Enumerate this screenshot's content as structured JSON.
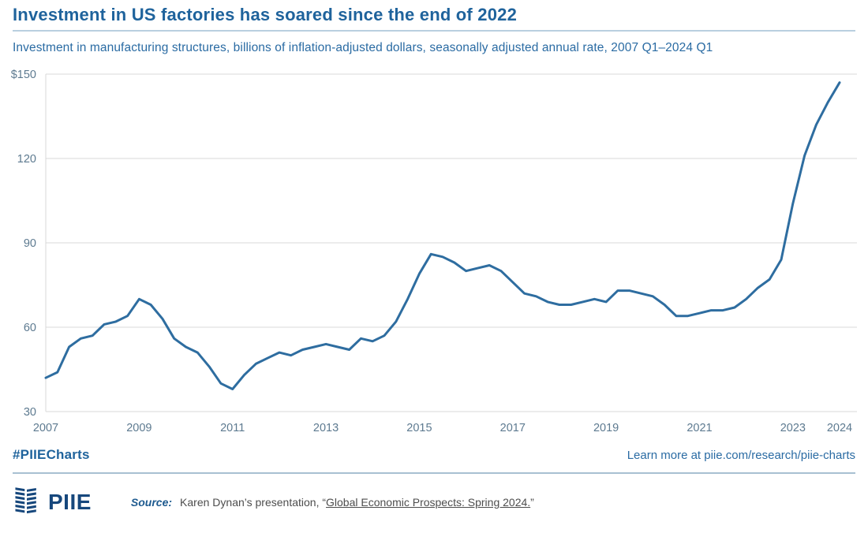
{
  "header": {
    "title": "Investment in US factories has soared since the end of 2022",
    "subtitle": "Investment in manufacturing structures, billions of inflation-adjusted dollars, seasonally adjusted annual rate, 2007 Q1–2024 Q1"
  },
  "chart_data": {
    "type": "line",
    "title": "Investment in US factories has soared since the end of 2022",
    "series_name": "Investment in manufacturing structures (billions of inflation-adjusted dollars, SAAR)",
    "x": [
      2007,
      2007.25,
      2007.5,
      2007.75,
      2008,
      2008.25,
      2008.5,
      2008.75,
      2009,
      2009.25,
      2009.5,
      2009.75,
      2010,
      2010.25,
      2010.5,
      2010.75,
      2011,
      2011.25,
      2011.5,
      2011.75,
      2012,
      2012.25,
      2012.5,
      2012.75,
      2013,
      2013.25,
      2013.5,
      2013.75,
      2014,
      2014.25,
      2014.5,
      2014.75,
      2015,
      2015.25,
      2015.5,
      2015.75,
      2016,
      2016.25,
      2016.5,
      2016.75,
      2017,
      2017.25,
      2017.5,
      2017.75,
      2018,
      2018.25,
      2018.5,
      2018.75,
      2019,
      2019.25,
      2019.5,
      2019.75,
      2020,
      2020.25,
      2020.5,
      2020.75,
      2021,
      2021.25,
      2021.5,
      2021.75,
      2022,
      2022.25,
      2022.5,
      2022.75,
      2023,
      2023.25,
      2023.5,
      2023.75,
      2024
    ],
    "values": [
      42,
      44,
      53,
      56,
      57,
      61,
      62,
      64,
      70,
      68,
      63,
      56,
      53,
      51,
      46,
      40,
      38,
      43,
      47,
      49,
      51,
      50,
      52,
      53,
      54,
      53,
      52,
      56,
      55,
      57,
      62,
      70,
      79,
      86,
      85,
      83,
      80,
      81,
      82,
      80,
      76,
      72,
      71,
      69,
      68,
      68,
      69,
      70,
      69,
      73,
      73,
      72,
      71,
      68,
      64,
      64,
      65,
      66,
      66,
      67,
      70,
      74,
      77,
      84,
      104,
      121,
      132,
      140,
      147
    ],
    "xlim": [
      2007,
      2024
    ],
    "ylim": [
      30,
      150
    ],
    "yticks": [
      30,
      60,
      90,
      120,
      150
    ],
    "ytick_labels": [
      "30",
      "60",
      "90",
      "120",
      "$150"
    ],
    "xticks": [
      2007,
      2009,
      2011,
      2013,
      2015,
      2017,
      2019,
      2021,
      2023,
      2024
    ],
    "grid": "horizontal",
    "legend": "none",
    "line_color": "#2e6da0",
    "grid_color": "#d9d9d9",
    "tick_color": "#5d7a90"
  },
  "footer": {
    "hashtag": "#PIIECharts",
    "learn_more": "Learn more at piie.com/research/piie-charts",
    "logo_text": "PIIE",
    "source_label": "Source:",
    "source_prefix": "Karen Dynan’s presentation, “",
    "source_link": "Global Economic Prospects: Spring 2024.",
    "source_suffix": "”"
  },
  "colors": {
    "accent_blue": "#1f639c",
    "text_blue": "#2a6ba3",
    "navy": "#16477c"
  }
}
